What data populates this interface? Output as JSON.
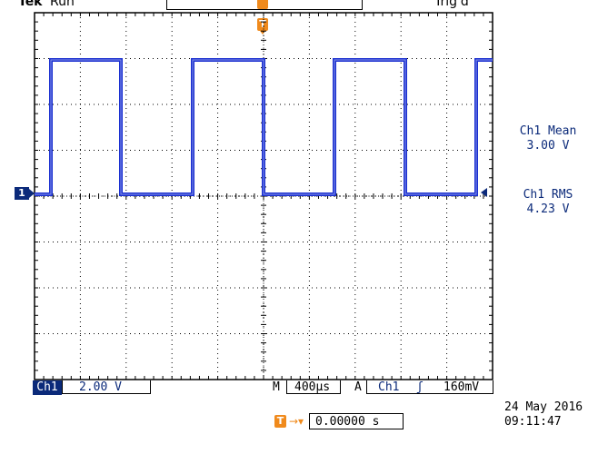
{
  "header": {
    "brand": "Tek",
    "run_state": "Run",
    "trigger_state": "Trig'd"
  },
  "markers": {
    "trigger_position_label": "T",
    "ground_label": "1",
    "offset_label": "T"
  },
  "measurements": [
    {
      "name": "Ch1 Mean",
      "value": "3.00 V"
    },
    {
      "name": "Ch1 RMS",
      "value": "4.23 V"
    }
  ],
  "status": {
    "channel": "Ch1",
    "volts_per_div": "2.00 V",
    "timebase_prefix": "M",
    "timebase": "400µs",
    "trigger_prefix": "A",
    "trigger_source": "Ch1",
    "trigger_slope_icon": "rising-edge-icon",
    "trigger_slope_glyph": "ʃ",
    "trigger_level": "160mV",
    "offset_arrow": "→▾",
    "horizontal_offset": "0.00000 s",
    "date": "24 May 2016",
    "time": "09:11:47"
  },
  "colors": {
    "trace": "#1a2fd0",
    "marker": "#f08a1c",
    "channel": "#0b2a7a",
    "grid": "#000000"
  }
}
